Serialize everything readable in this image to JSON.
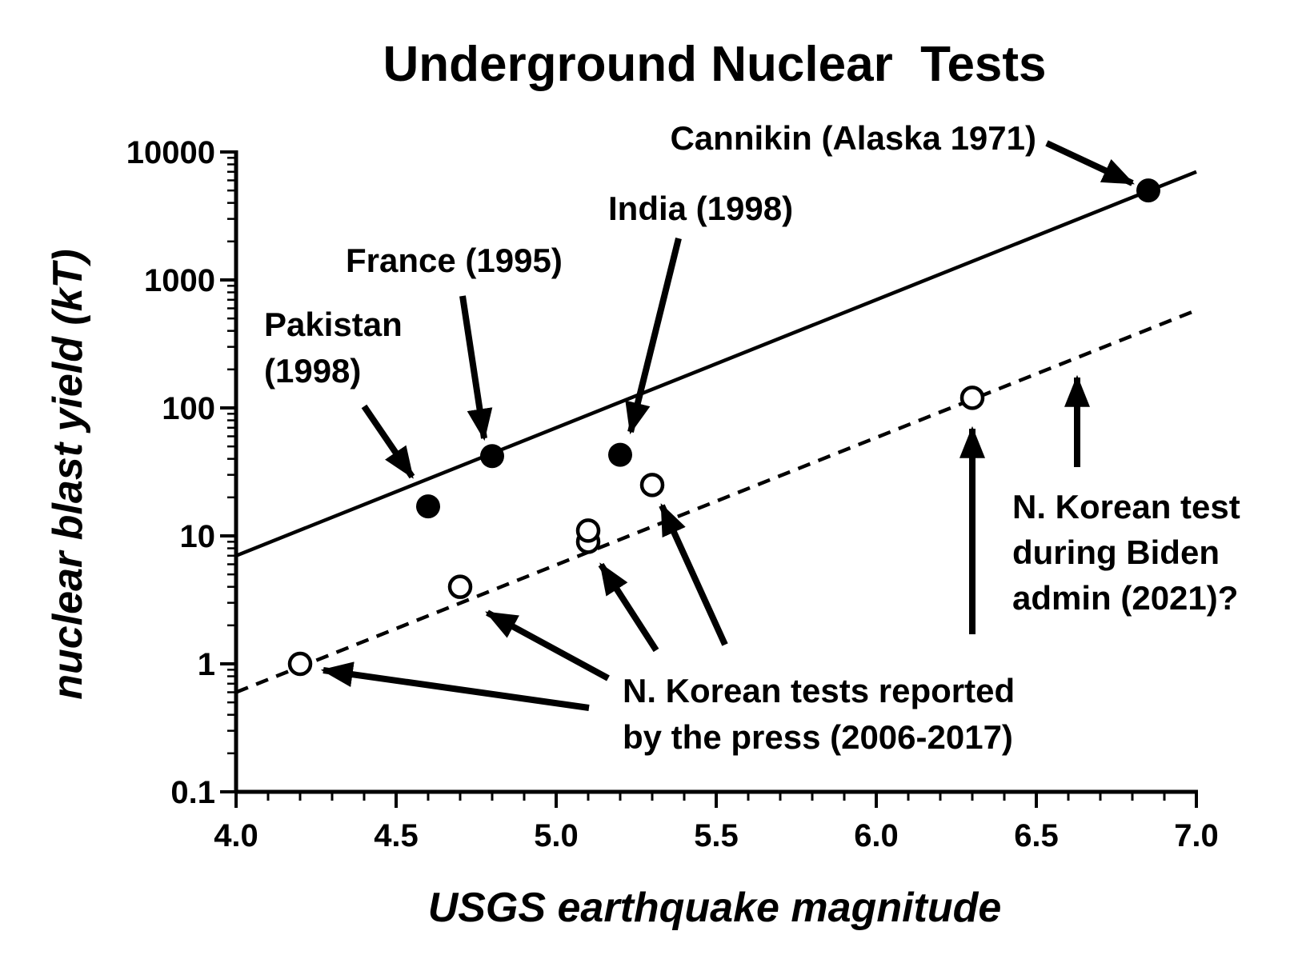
{
  "chart_data": {
    "type": "scatter",
    "title": "Underground Nuclear  Tests",
    "xlabel": "USGS earthquake magnitude",
    "ylabel": "nuclear blast yield (kT)",
    "xlim": [
      4.0,
      7.0
    ],
    "ylim": [
      0.1,
      10000
    ],
    "y_scale": "log",
    "grid": false,
    "x_ticks": [
      "4.0",
      "4.5",
      "5.0",
      "5.5",
      "6.0",
      "6.5",
      "7.0"
    ],
    "y_ticks": [
      "0.1",
      "1",
      "10",
      "100",
      "1000",
      "10000"
    ],
    "series": [
      {
        "marker": "filled-circle",
        "points": [
          {
            "x": 4.6,
            "y": 17
          },
          {
            "x": 4.8,
            "y": 42
          },
          {
            "x": 5.2,
            "y": 43
          },
          {
            "x": 6.85,
            "y": 5000
          }
        ]
      },
      {
        "marker": "open-circle",
        "points": [
          {
            "x": 4.2,
            "y": 1
          },
          {
            "x": 4.7,
            "y": 4
          },
          {
            "x": 5.1,
            "y": 9
          },
          {
            "x": 5.1,
            "y": 11
          },
          {
            "x": 5.3,
            "y": 25
          },
          {
            "x": 6.3,
            "y": 120
          }
        ]
      }
    ],
    "lines": [
      {
        "style": "solid",
        "from": {
          "x": 4.0,
          "y": 7
        },
        "to": {
          "x": 7.0,
          "y": 7000
        }
      },
      {
        "style": "dashed",
        "from": {
          "x": 4.0,
          "y": 0.6
        },
        "to": {
          "x": 7.0,
          "y": 580
        }
      }
    ],
    "annotations": [
      {
        "lines": [
          "Cannikin (Alaska 1971)"
        ]
      },
      {
        "lines": [
          "India (1998)"
        ]
      },
      {
        "lines": [
          "France (1995)"
        ]
      },
      {
        "lines": [
          "Pakistan",
          "(1998)"
        ]
      },
      {
        "lines": [
          "N. Korean test",
          "during Biden",
          "admin (2021)?"
        ]
      },
      {
        "lines": [
          "N. Korean tests reported",
          "by the press (2006-2017)"
        ]
      }
    ]
  }
}
